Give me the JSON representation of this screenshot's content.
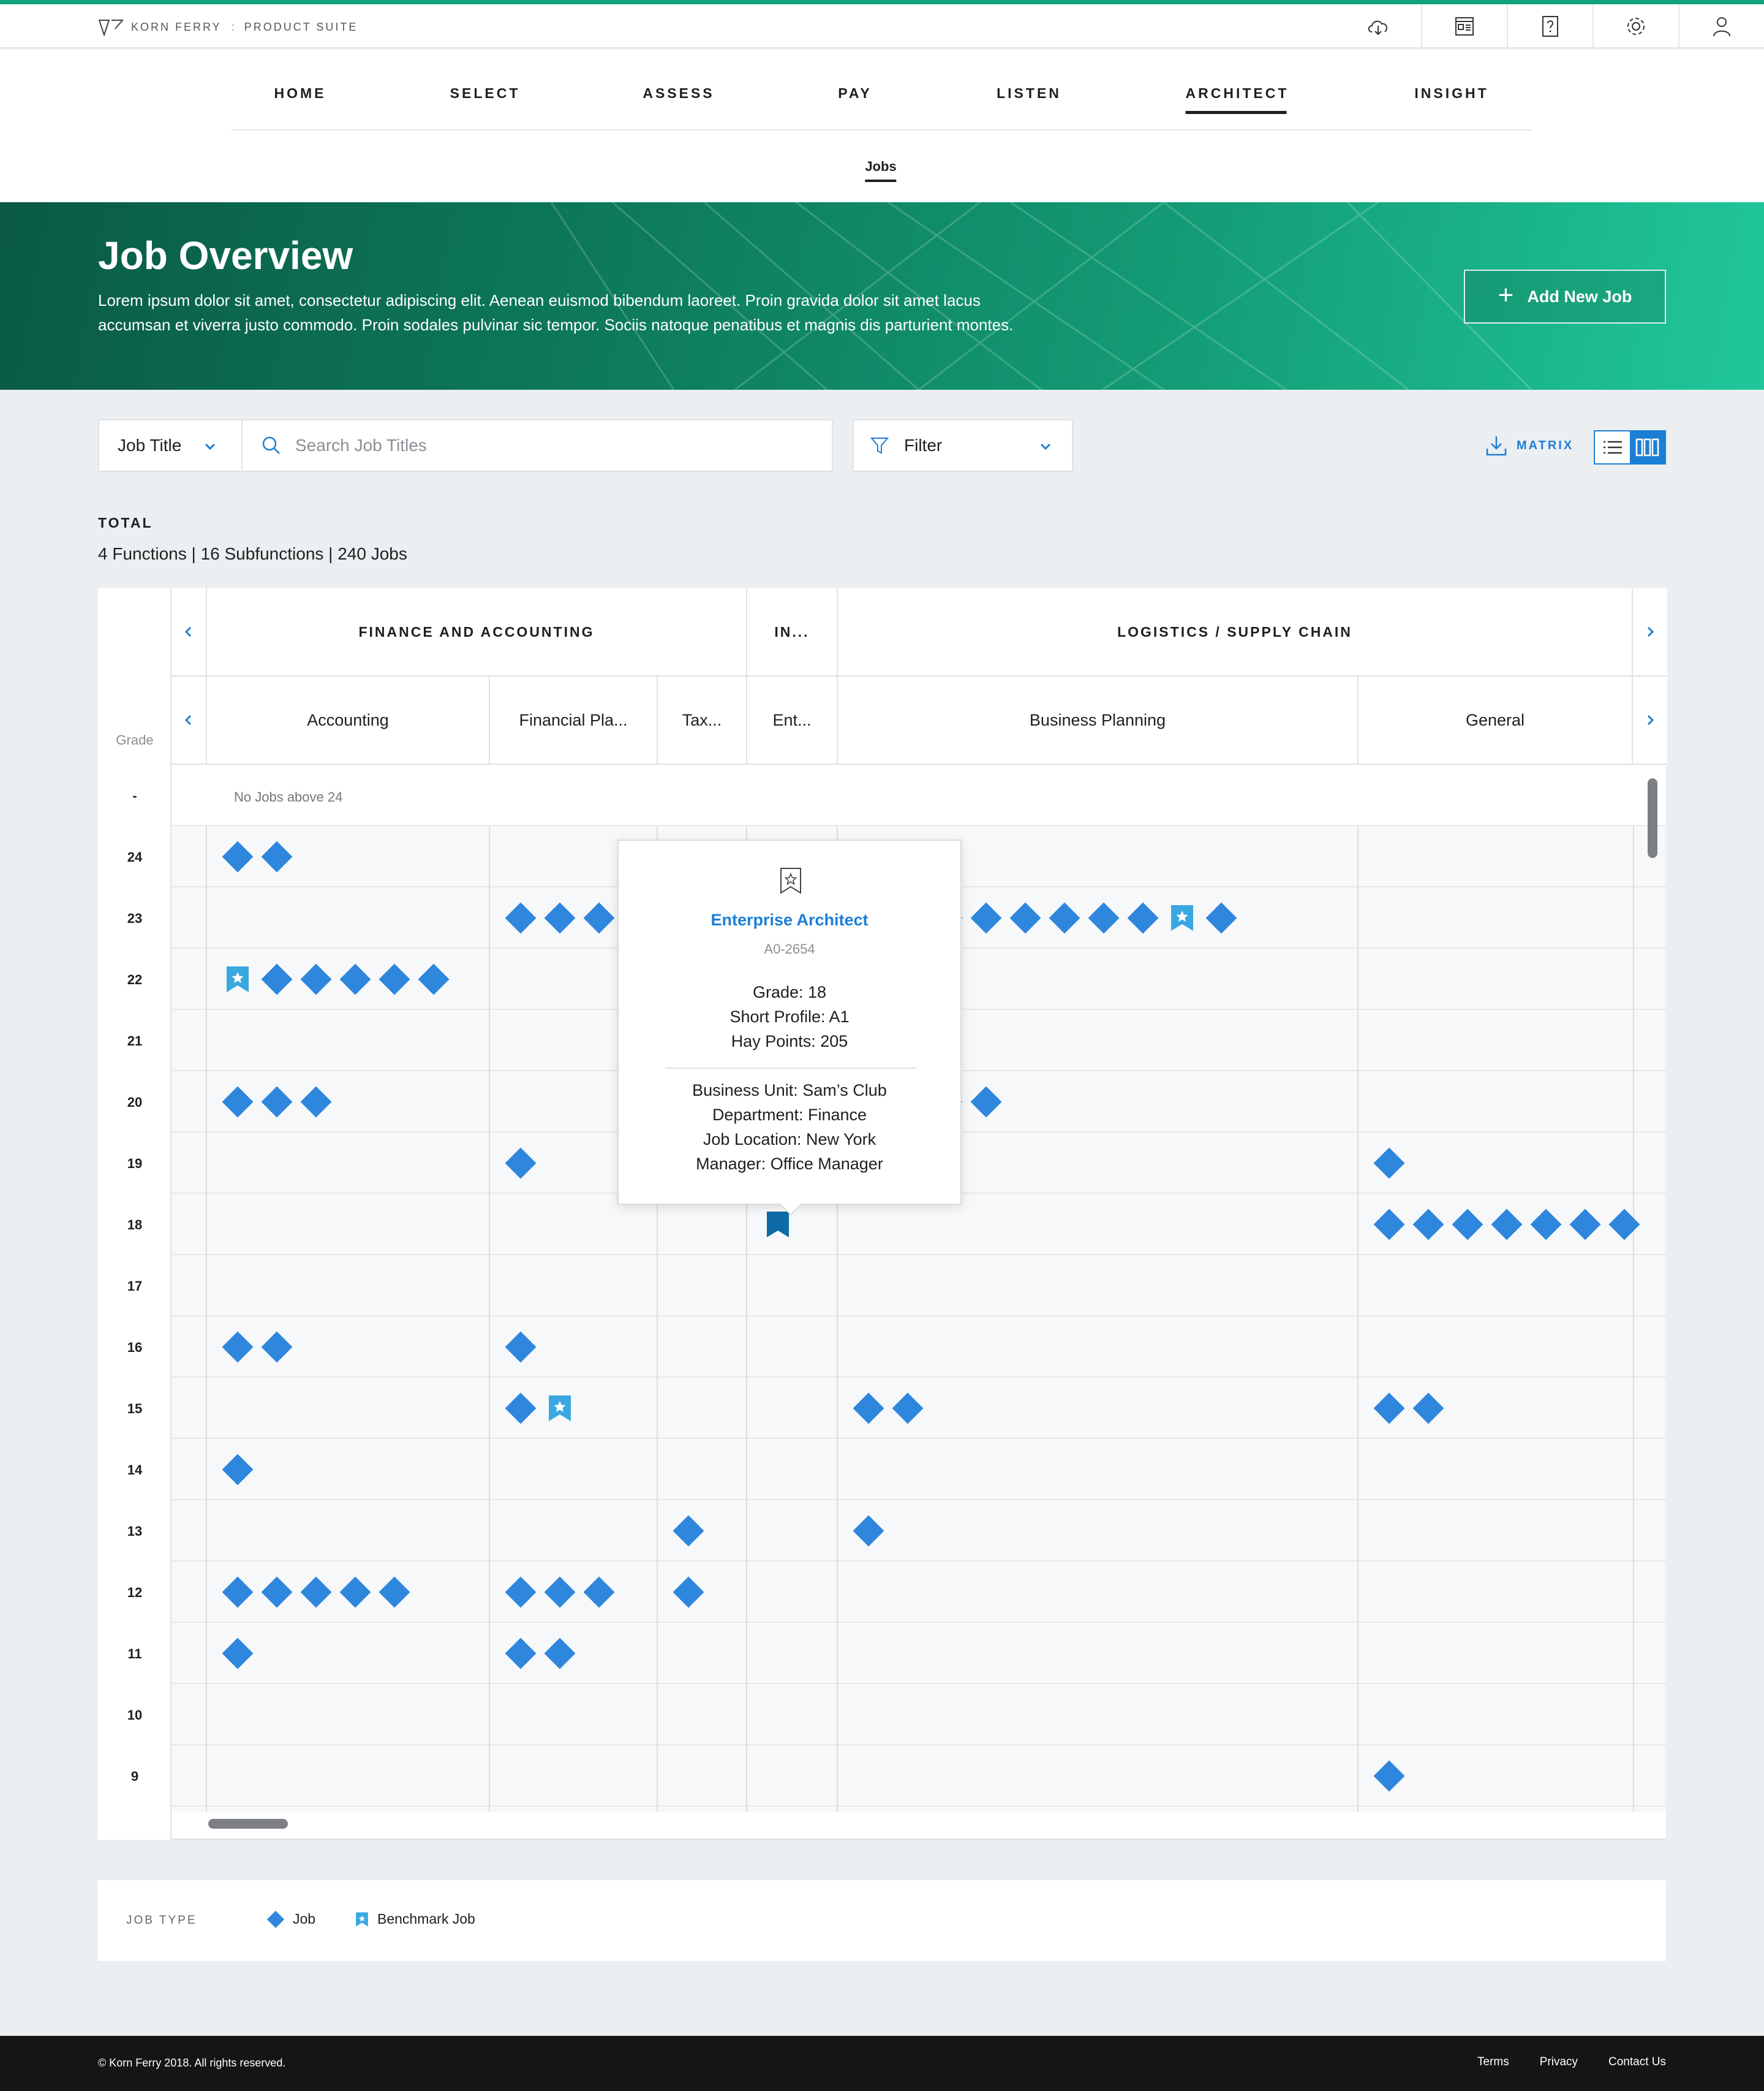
{
  "brand": {
    "name": "KORN FERRY",
    "suite": "PRODUCT SUITE"
  },
  "topbar_icons": [
    "cloud-download-icon",
    "dashboard-icon",
    "help-icon",
    "gear-icon",
    "user-icon"
  ],
  "nav": {
    "items": [
      "HOME",
      "SELECT",
      "ASSESS",
      "PAY",
      "LISTEN",
      "ARCHITECT",
      "INSIGHT"
    ],
    "active": "ARCHITECT",
    "sub_item": "Jobs"
  },
  "hero": {
    "title": "Job Overview",
    "description": "Lorem ipsum dolor sit amet, consectetur adipiscing elit. Aenean euismod bibendum laoreet. Proin gravida dolor sit amet lacus accumsan et viverra justo commodo. Proin sodales pulvinar sic tempor. Sociis natoque penatibus et magnis dis parturient montes.",
    "add_button": "Add New Job"
  },
  "toolbar": {
    "search_field": "Job Title",
    "search_placeholder": "Search Job Titles",
    "filter_label": "Filter",
    "matrix_label": "MATRIX"
  },
  "totals": {
    "label": "TOTAL",
    "value": "4 Functions | 16 Subfunctions | 240 Jobs"
  },
  "matrix": {
    "grade_header": "Grade",
    "functions": [
      "FINANCE AND ACCOUNTING",
      "IN...",
      "LOGISTICS / SUPPLY CHAIN"
    ],
    "subfunctions": [
      "Accounting",
      "Financial Pla...",
      "Tax...",
      "Ent...",
      "Business Planning",
      "General"
    ],
    "grades": [
      "-",
      "24",
      "23",
      "22",
      "21",
      "20",
      "19",
      "18",
      "17",
      "16",
      "15",
      "14",
      "13",
      "12",
      "11",
      "10",
      "9"
    ],
    "no_jobs_text": "No Jobs above 24",
    "cells": [
      {
        "grade": "24",
        "sub": 0,
        "jobs": [
          "J",
          "J"
        ]
      },
      {
        "grade": "23",
        "sub": 1,
        "jobs": [
          "J",
          "J",
          "J"
        ]
      },
      {
        "grade": "23",
        "sub": 4,
        "jobs": [
          "J",
          "J",
          "J",
          "J",
          "J",
          "J",
          "J",
          "J",
          "B",
          "J"
        ]
      },
      {
        "grade": "22",
        "sub": 0,
        "jobs": [
          "B",
          "J",
          "J",
          "J",
          "J",
          "J"
        ]
      },
      {
        "grade": "20",
        "sub": 0,
        "jobs": [
          "J",
          "J",
          "J"
        ]
      },
      {
        "grade": "20",
        "sub": 4,
        "jobs": [
          "J",
          "J",
          "J",
          "J"
        ]
      },
      {
        "grade": "19",
        "sub": 1,
        "jobs": [
          "J"
        ]
      },
      {
        "grade": "19",
        "sub": 5,
        "jobs": [
          "J"
        ]
      },
      {
        "grade": "18",
        "sub": 3,
        "jobs": [
          "BD"
        ]
      },
      {
        "grade": "18",
        "sub": 5,
        "jobs": [
          "J",
          "J",
          "J",
          "J",
          "J",
          "J",
          "J"
        ]
      },
      {
        "grade": "16",
        "sub": 0,
        "jobs": [
          "J",
          "J"
        ]
      },
      {
        "grade": "16",
        "sub": 1,
        "jobs": [
          "J"
        ]
      },
      {
        "grade": "15",
        "sub": 1,
        "jobs": [
          "J",
          "B"
        ]
      },
      {
        "grade": "15",
        "sub": 4,
        "jobs": [
          "J",
          "J"
        ]
      },
      {
        "grade": "15",
        "sub": 5,
        "jobs": [
          "J",
          "J"
        ]
      },
      {
        "grade": "14",
        "sub": 0,
        "jobs": [
          "J"
        ]
      },
      {
        "grade": "13",
        "sub": 2,
        "jobs": [
          "J"
        ]
      },
      {
        "grade": "13",
        "sub": 4,
        "jobs": [
          "J"
        ]
      },
      {
        "grade": "12",
        "sub": 0,
        "jobs": [
          "J",
          "J",
          "J",
          "J",
          "J"
        ]
      },
      {
        "grade": "12",
        "sub": 1,
        "jobs": [
          "J",
          "J",
          "J"
        ]
      },
      {
        "grade": "12",
        "sub": 2,
        "jobs": [
          "J"
        ]
      },
      {
        "grade": "11",
        "sub": 0,
        "jobs": [
          "J"
        ]
      },
      {
        "grade": "11",
        "sub": 1,
        "jobs": [
          "J",
          "J"
        ]
      },
      {
        "grade": "9",
        "sub": 5,
        "jobs": [
          "J"
        ]
      }
    ]
  },
  "tooltip": {
    "title": "Enterprise Architect",
    "code": "A0-2654",
    "grade": "Grade: 18",
    "short_profile": "Short Profile: A1",
    "hay_points": "Hay Points: 205",
    "business_unit": "Business Unit: Sam’s Club",
    "department": "Department: Finance",
    "location": "Job Location: New York",
    "manager": "Manager: Office Manager"
  },
  "legend": {
    "label": "JOB TYPE",
    "job": "Job",
    "benchmark": "Benchmark Job"
  },
  "footer": {
    "copyright": "© Korn Ferry 2018. All rights reserved.",
    "links": [
      "Terms",
      "Privacy",
      "Contact Us"
    ]
  },
  "colors": {
    "accent": "#1c7fd6",
    "job": "#2f87dd",
    "benchmark": "#3aa8e0",
    "hero_dark": "#0a5a44",
    "hero_light": "#20c79a"
  }
}
